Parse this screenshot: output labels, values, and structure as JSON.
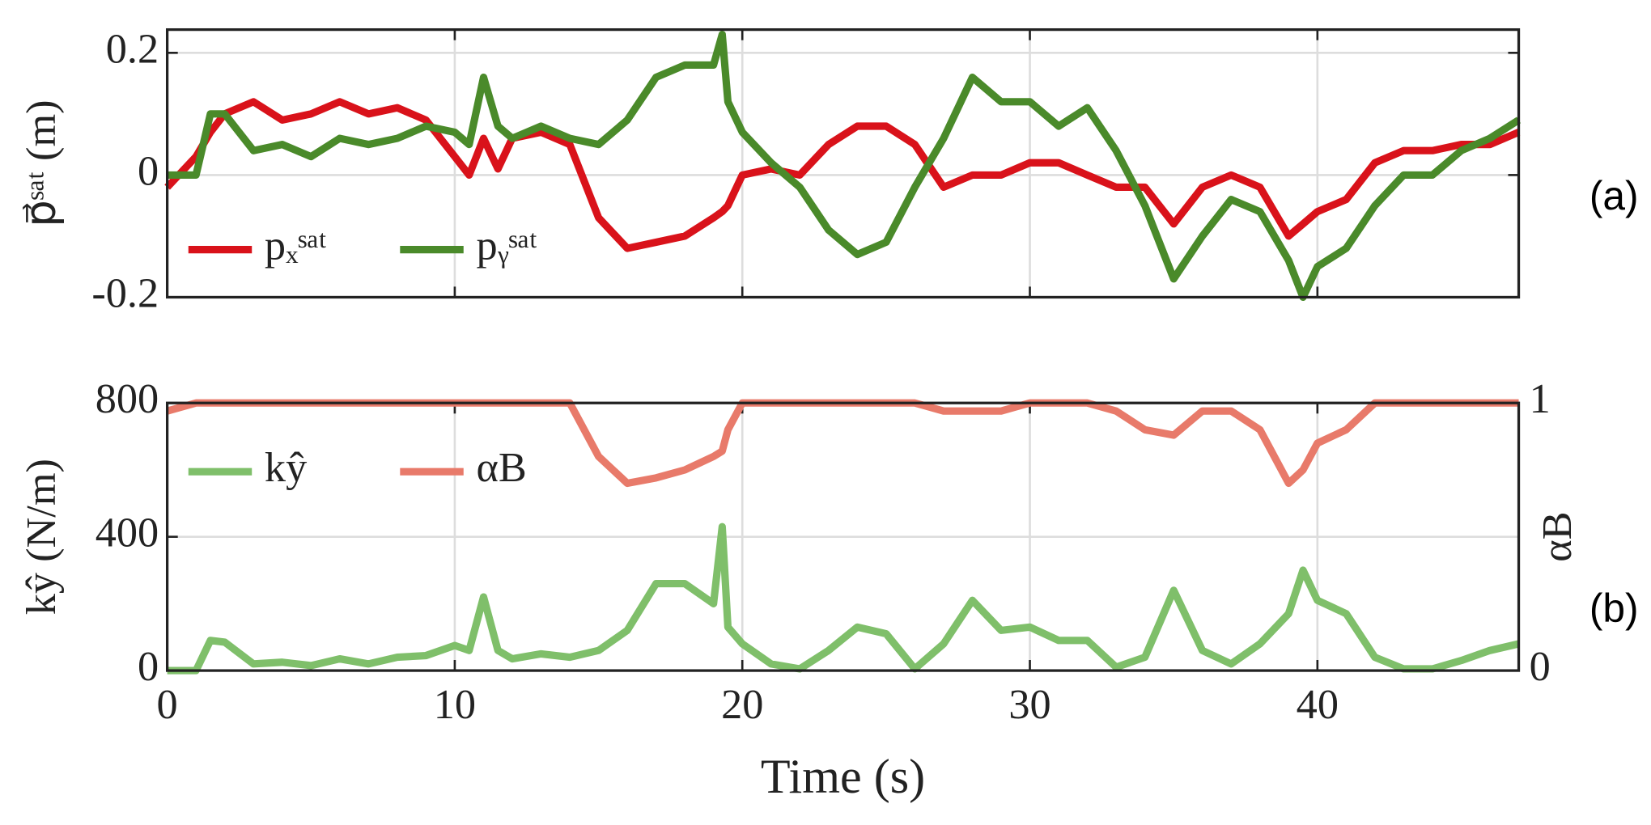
{
  "chart_data": [
    {
      "type": "line",
      "ylabel": "p⃗ˢᵃᵗ (m)",
      "annotation": "(a)",
      "legend": "lower left",
      "grid": true,
      "x": [
        0,
        1,
        1.5,
        2,
        3,
        4,
        5,
        6,
        7,
        8,
        9,
        10,
        10.5,
        11,
        11.5,
        12,
        13,
        14,
        15,
        16,
        17,
        18,
        19,
        19.3,
        19.5,
        20,
        21,
        22,
        23,
        24,
        25,
        26,
        27,
        28,
        29,
        30,
        31,
        32,
        33,
        34,
        35,
        36,
        37,
        38,
        39,
        39.5,
        40,
        41,
        42,
        43,
        44,
        45,
        46,
        47
      ],
      "xlim": [
        0,
        47
      ],
      "xticks": [
        0,
        10,
        20,
        30,
        40
      ],
      "ylim": [
        -0.2,
        0.238
      ],
      "yticks": [
        -0.2,
        0,
        0.2
      ],
      "series": [
        {
          "name": "pₓˢᵃᵗ",
          "color": "#d9121a",
          "values": [
            -0.02,
            0.03,
            0.07,
            0.1,
            0.12,
            0.09,
            0.1,
            0.12,
            0.1,
            0.11,
            0.09,
            0.03,
            0,
            0.06,
            0.01,
            0.06,
            0.07,
            0.05,
            -0.07,
            -0.12,
            -0.11,
            -0.1,
            -0.07,
            -0.06,
            -0.05,
            0,
            0.01,
            0,
            0.05,
            0.08,
            0.08,
            0.05,
            -0.02,
            0,
            0,
            0.02,
            0.02,
            0,
            -0.02,
            -0.02,
            -0.08,
            -0.02,
            0,
            -0.02,
            -0.1,
            -0.08,
            -0.06,
            -0.04,
            0.02,
            0.04,
            0.04,
            0.05,
            0.05,
            0.07
          ]
        },
        {
          "name": "pᵧˢᵃᵗ",
          "color": "#4a8a2a",
          "values": [
            0,
            0,
            0.1,
            0.1,
            0.04,
            0.05,
            0.03,
            0.06,
            0.05,
            0.06,
            0.08,
            0.07,
            0.05,
            0.16,
            0.08,
            0.06,
            0.08,
            0.06,
            0.05,
            0.09,
            0.16,
            0.18,
            0.18,
            0.23,
            0.12,
            0.07,
            0.02,
            -0.02,
            -0.09,
            -0.13,
            -0.11,
            -0.02,
            0.06,
            0.16,
            0.12,
            0.12,
            0.08,
            0.11,
            0.04,
            -0.05,
            -0.17,
            -0.1,
            -0.04,
            -0.06,
            -0.14,
            -0.2,
            -0.15,
            -0.12,
            -0.05,
            0,
            0,
            0.04,
            0.06,
            0.09
          ]
        }
      ]
    },
    {
      "type": "line",
      "ylabel": "kŷ (N/m)",
      "y2label": "αB",
      "xlabel": "Time (s)",
      "annotation": "(b)",
      "legend": "upper left",
      "grid": true,
      "x": [
        0,
        1,
        1.5,
        2,
        3,
        4,
        5,
        6,
        7,
        8,
        9,
        10,
        10.5,
        11,
        11.5,
        12,
        13,
        14,
        15,
        16,
        17,
        18,
        19,
        19.3,
        19.5,
        20,
        21,
        22,
        23,
        24,
        25,
        26,
        27,
        28,
        29,
        30,
        31,
        32,
        33,
        34,
        35,
        36,
        37,
        38,
        39,
        39.5,
        40,
        41,
        42,
        43,
        44,
        45,
        46,
        47
      ],
      "xlim": [
        0,
        47
      ],
      "xticks": [
        0,
        10,
        20,
        30,
        40
      ],
      "ylim": [
        0,
        800
      ],
      "yticks": [
        0,
        400,
        800
      ],
      "y2lim": [
        0,
        1
      ],
      "y2ticks": [
        0,
        1
      ],
      "series": [
        {
          "name": "kŷ",
          "color": "#7fbf6a",
          "values": [
            0,
            0,
            90,
            85,
            20,
            25,
            15,
            35,
            20,
            40,
            45,
            75,
            60,
            220,
            60,
            35,
            50,
            40,
            60,
            120,
            260,
            260,
            200,
            430,
            130,
            80,
            20,
            5,
            60,
            130,
            110,
            5,
            80,
            210,
            120,
            130,
            90,
            90,
            10,
            40,
            240,
            60,
            20,
            80,
            170,
            300,
            210,
            170,
            40,
            5,
            5,
            30,
            60,
            80
          ]
        },
        {
          "name": "αB",
          "color": "#e87a6a",
          "axis": "y2",
          "values": [
            0.97,
            1,
            1,
            1,
            1,
            1,
            1,
            1,
            1,
            1,
            1,
            1,
            1,
            1,
            1,
            1,
            1,
            1,
            0.8,
            0.7,
            0.72,
            0.75,
            0.8,
            0.82,
            0.9,
            1,
            1,
            1,
            1,
            1,
            1,
            1,
            0.97,
            0.97,
            0.97,
            1,
            1,
            1,
            0.97,
            0.9,
            0.88,
            0.97,
            0.97,
            0.9,
            0.7,
            0.75,
            0.85,
            0.9,
            1,
            1,
            1,
            1,
            1,
            1
          ]
        }
      ]
    }
  ]
}
